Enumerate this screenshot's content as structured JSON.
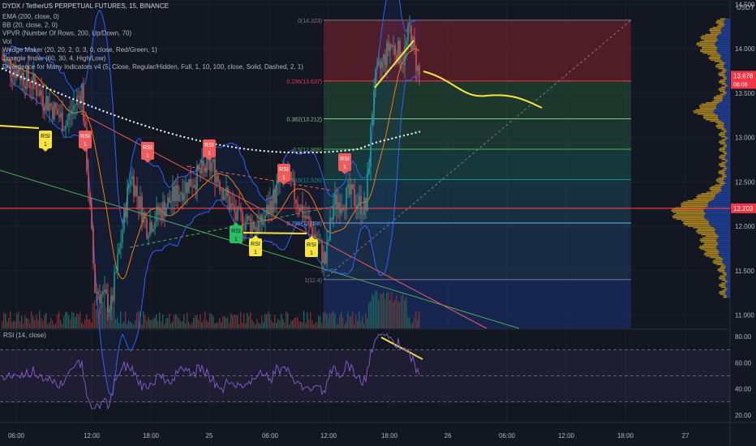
{
  "chart_data": {
    "type": "candlestick",
    "title": "DYDX / TetherUS PERPETUAL FUTURES, 15, BINANCE",
    "currency": "USDT",
    "indicators": [
      "EMA (200, close, 0)",
      "BB (20, close, 2, 0)",
      "VPVR (Number Of Rows, 200, Up/Down, 70)",
      "Vol",
      "Wedge Maker (20, 20, 2, 0, 3, 0, close, Red/Green, 1)",
      "Triangle finder (60, 30, 4, High/Low)",
      "Divergence for Many Indicators v4 (5, Close, Regular/Hidden, Full, 1, 10, 100, close, Solid, Dashed, 2, 1)"
    ],
    "price_axis": {
      "ylim": [
        10.85,
        14.55
      ],
      "ticks": [
        "14.500",
        "14.000",
        "13.500",
        "13.000",
        "12.500",
        "12.000",
        "11.500",
        "11.000"
      ]
    },
    "time_axis": {
      "ticks": [
        "06:00",
        "12:00",
        "18:00",
        "25",
        "06:00",
        "12:00",
        "18:00",
        "26",
        "06:00",
        "12:00",
        "18:00",
        "27"
      ]
    },
    "current_price": {
      "value": "13.678",
      "countdown": "08:06",
      "color": "#f23645"
    },
    "level_tag": {
      "value": "12.203",
      "color": "#f23645"
    },
    "fibonacci": [
      {
        "label": "0(14.323)",
        "price": 14.323
      },
      {
        "label": "0.236(13.637)",
        "price": 13.637
      },
      {
        "label": "0.382(13.212)",
        "price": 13.212
      },
      {
        "label": "0.5(12.869)",
        "price": 12.869
      },
      {
        "label": "0.618(12.526)",
        "price": 12.526
      },
      {
        "label": "0.786(12.038)",
        "price": 12.038
      },
      {
        "label": "1(11.4)",
        "price": 11.4
      }
    ],
    "rsi_signals": [
      {
        "text": "RSI",
        "count": "1",
        "color": "#f7e43d",
        "dir": "down"
      },
      {
        "text": "RSI",
        "count": "1",
        "color": "#f05b5b",
        "dir": "down"
      },
      {
        "text": "RSI",
        "count": "1",
        "color": "#f05b5b",
        "dir": "down"
      },
      {
        "text": "RSI",
        "count": "1",
        "color": "#f05b5b",
        "dir": "down"
      },
      {
        "text": "RSI",
        "count": "1",
        "color": "#26c062",
        "dir": "up"
      },
      {
        "text": "RSI",
        "count": "1",
        "color": "#f7e43d",
        "dir": "up"
      },
      {
        "text": "RSI",
        "count": "1",
        "color": "#f05b5b",
        "dir": "down"
      },
      {
        "text": "RSI",
        "count": "1",
        "color": "#f7e43d",
        "dir": "up"
      },
      {
        "text": "RSI",
        "count": "1",
        "color": "#f05b5b",
        "dir": "down"
      }
    ],
    "rsi_pane": {
      "title": "RSI (14, close)",
      "ylim": [
        15,
        85
      ],
      "ticks": [
        "80.00",
        "60.00",
        "40.00",
        "20.00"
      ],
      "bands": [
        70,
        50,
        30
      ],
      "line_color": "#7e57c2"
    },
    "colors": {
      "up": "#26a69a",
      "down": "#ef5350",
      "ema": "#ffffff",
      "bb": "#2962ff",
      "annotation": "#f7e43d"
    },
    "grid": true
  }
}
